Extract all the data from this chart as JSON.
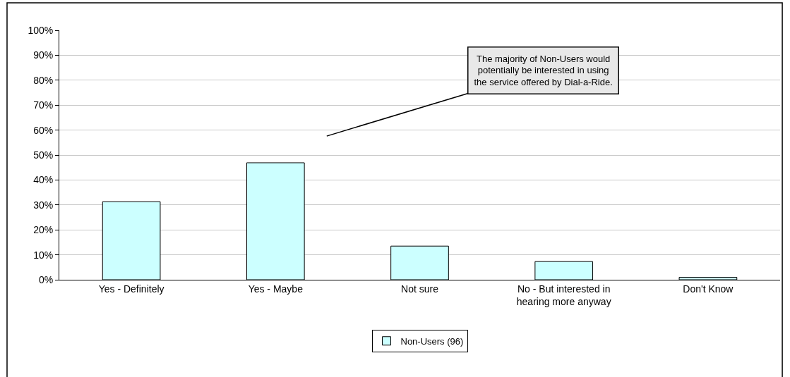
{
  "chart_data": {
    "type": "bar",
    "categories": [
      "Yes - Definitely",
      "Yes - Maybe",
      "Not sure",
      "No - But interested in hearing more anyway",
      "Don't Know"
    ],
    "series": [
      {
        "name": "Non-Users (96)",
        "color": "#ccffff",
        "values": [
          31.3,
          46.9,
          13.5,
          7.3,
          1.0
        ]
      }
    ],
    "ylim": [
      0,
      100
    ],
    "yticks": [
      {
        "value": 0,
        "label": "0%"
      },
      {
        "value": 10,
        "label": "10%"
      },
      {
        "value": 20,
        "label": "20%"
      },
      {
        "value": 30,
        "label": "30%"
      },
      {
        "value": 40,
        "label": "40%"
      },
      {
        "value": 50,
        "label": "50%"
      },
      {
        "value": 60,
        "label": "60%"
      },
      {
        "value": 70,
        "label": "70%"
      },
      {
        "value": 80,
        "label": "80%"
      },
      {
        "value": 90,
        "label": "90%"
      },
      {
        "value": 100,
        "label": "100%"
      }
    ],
    "grid": "y",
    "legend": "bottom",
    "annotations": [
      "The majority of Non-Users would potentially be interested in using the service offered by Dial-a-Ride."
    ]
  }
}
